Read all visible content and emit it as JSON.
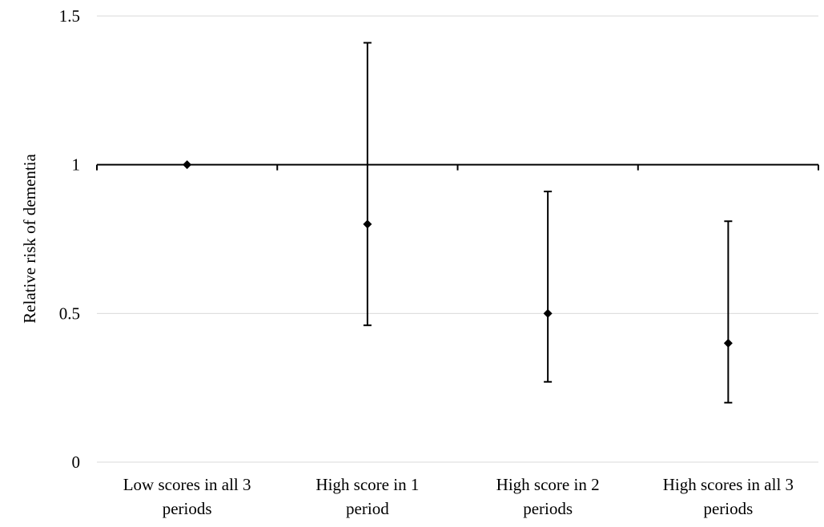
{
  "chart_data": {
    "type": "scatter",
    "title": "",
    "xlabel": "",
    "ylabel": "Relative risk of dementia",
    "ylim": [
      0,
      1.5
    ],
    "yticks": [
      "0",
      "0.5",
      "1",
      "1.5"
    ],
    "reference_line": 1,
    "grid": "horizontal",
    "categories": [
      [
        "Low scores in all 3",
        "periods"
      ],
      [
        "High score in 1",
        "period"
      ],
      [
        "High score in 2",
        "periods"
      ],
      [
        "High scores in all 3",
        "periods"
      ]
    ],
    "series": [
      {
        "values": [
          1.0,
          0.8,
          0.5,
          0.4
        ],
        "lower": [
          null,
          0.46,
          0.27,
          0.2
        ],
        "upper": [
          null,
          1.41,
          0.91,
          0.81
        ]
      }
    ],
    "colors": {
      "marker": "#000000",
      "gridline": "#d9d9d9",
      "axis": "#000000"
    }
  }
}
